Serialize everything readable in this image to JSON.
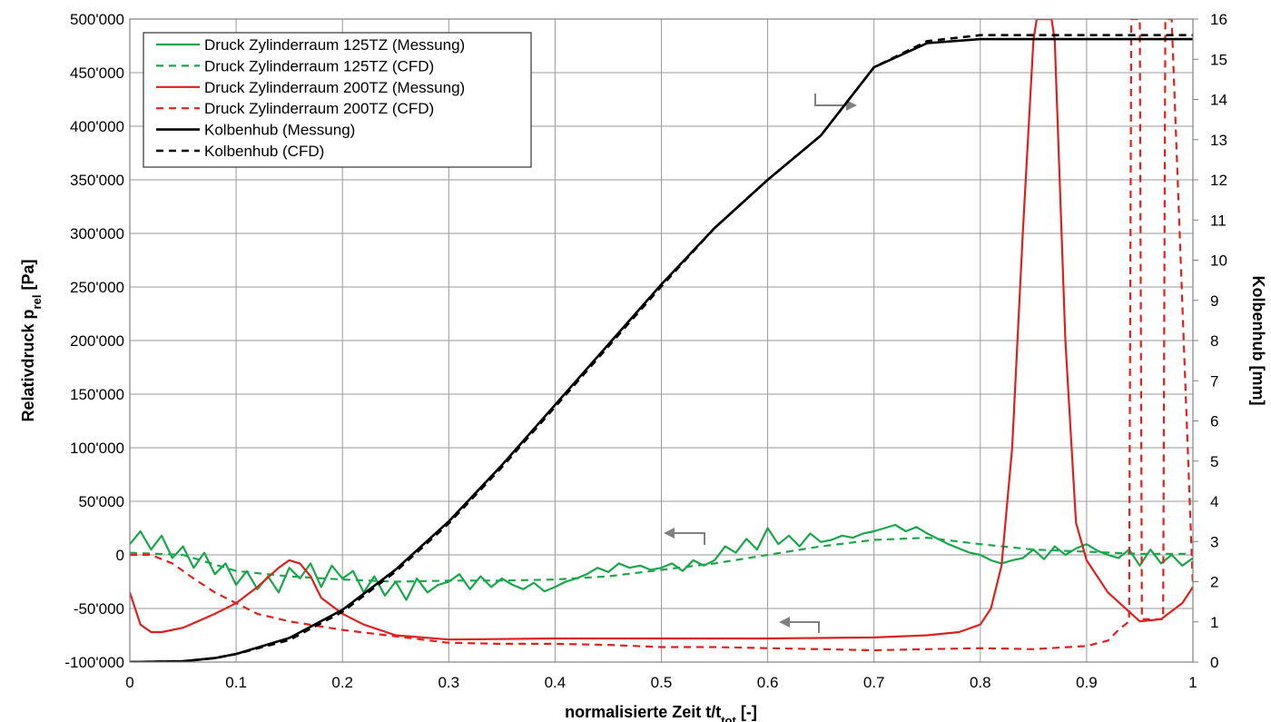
{
  "chart_data": {
    "type": "line",
    "title": "",
    "xlabel": "normalisierte Zeit t/t",
    "xlabel_sub": "tot",
    "xlabel_unit": " [-]",
    "ylabel": "Relativdruck p",
    "ylabel_sub": "rel",
    "ylabel_unit": " [Pa]",
    "y2label": "Kolbenhub [mm]",
    "xlim": [
      0,
      1
    ],
    "ylim": [
      -100000,
      500000
    ],
    "y2lim": [
      0,
      16
    ],
    "grid": true,
    "legend_position": "top-left",
    "x_ticks": [
      "0",
      "0.1",
      "0.2",
      "0.3",
      "0.4",
      "0.5",
      "0.6",
      "0.7",
      "0.8",
      "0.9",
      "1"
    ],
    "y_ticks": [
      "-100'000",
      "-50'000",
      "0",
      "50'000",
      "100'000",
      "150'000",
      "200'000",
      "250'000",
      "300'000",
      "350'000",
      "400'000",
      "450'000",
      "500'000"
    ],
    "y2_ticks": [
      "0",
      "1",
      "2",
      "3",
      "4",
      "5",
      "6",
      "7",
      "8",
      "9",
      "10",
      "11",
      "12",
      "13",
      "14",
      "15",
      "16"
    ],
    "series": [
      {
        "name": "Druck Zylinderraum 125TZ (Messung)",
        "color": "#1aa64a",
        "dash": "solid",
        "axis": "left",
        "x": [
          0,
          0.01,
          0.02,
          0.03,
          0.04,
          0.05,
          0.06,
          0.07,
          0.08,
          0.09,
          0.1,
          0.11,
          0.12,
          0.13,
          0.14,
          0.15,
          0.16,
          0.17,
          0.18,
          0.19,
          0.2,
          0.21,
          0.22,
          0.23,
          0.24,
          0.25,
          0.26,
          0.27,
          0.28,
          0.29,
          0.3,
          0.31,
          0.32,
          0.33,
          0.34,
          0.35,
          0.36,
          0.37,
          0.38,
          0.39,
          0.4,
          0.41,
          0.42,
          0.43,
          0.44,
          0.45,
          0.46,
          0.47,
          0.48,
          0.49,
          0.5,
          0.51,
          0.52,
          0.53,
          0.54,
          0.55,
          0.56,
          0.57,
          0.58,
          0.59,
          0.6,
          0.61,
          0.62,
          0.63,
          0.64,
          0.65,
          0.66,
          0.67,
          0.68,
          0.69,
          0.7,
          0.71,
          0.72,
          0.73,
          0.74,
          0.75,
          0.76,
          0.77,
          0.78,
          0.79,
          0.8,
          0.81,
          0.82,
          0.83,
          0.84,
          0.85,
          0.86,
          0.87,
          0.88,
          0.89,
          0.9,
          0.91,
          0.92,
          0.93,
          0.94,
          0.95,
          0.96,
          0.97,
          0.98,
          0.99,
          1.0
        ],
        "y": [
          10000,
          22000,
          5000,
          18000,
          -3000,
          8000,
          -12000,
          2000,
          -18000,
          -8000,
          -28000,
          -15000,
          -32000,
          -20000,
          -35000,
          -12000,
          -22000,
          -8000,
          -30000,
          -10000,
          -22000,
          -15000,
          -35000,
          -20000,
          -38000,
          -25000,
          -42000,
          -22000,
          -35000,
          -28000,
          -25000,
          -18000,
          -32000,
          -20000,
          -30000,
          -22000,
          -28000,
          -32000,
          -26000,
          -34000,
          -30000,
          -25000,
          -22000,
          -18000,
          -12000,
          -16000,
          -8000,
          -12000,
          -10000,
          -14000,
          -12000,
          -8000,
          -15000,
          -5000,
          -10000,
          -5000,
          8000,
          2000,
          15000,
          5000,
          25000,
          10000,
          18000,
          8000,
          20000,
          12000,
          14000,
          18000,
          16000,
          20000,
          22000,
          25000,
          28000,
          22000,
          26000,
          20000,
          15000,
          10000,
          6000,
          2000,
          0,
          -5000,
          -8000,
          -5000,
          -3000,
          5000,
          -4000,
          8000,
          0,
          6000,
          10000,
          4000,
          0,
          -3000,
          5000,
          -10000,
          5000,
          -8000,
          0,
          -10000,
          -3000
        ]
      },
      {
        "name": "Druck Zylinderraum 125TZ (CFD)",
        "color": "#1aa64a",
        "dash": "dashed",
        "axis": "left",
        "x": [
          0,
          0.05,
          0.1,
          0.15,
          0.2,
          0.25,
          0.3,
          0.35,
          0.4,
          0.45,
          0.5,
          0.55,
          0.6,
          0.65,
          0.7,
          0.75,
          0.8,
          0.85,
          0.9,
          0.95,
          1.0
        ],
        "y": [
          2000,
          0,
          -15000,
          -20000,
          -23000,
          -25000,
          -24000,
          -24000,
          -23000,
          -20000,
          -14000,
          -8000,
          0,
          8000,
          14000,
          16000,
          10000,
          5000,
          3000,
          1000,
          1000
        ]
      },
      {
        "name": "Druck Zylinderraum 200TZ (Messung)",
        "color": "#e0201c",
        "dash": "solid",
        "axis": "left",
        "x": [
          0,
          0.01,
          0.02,
          0.03,
          0.05,
          0.08,
          0.1,
          0.12,
          0.14,
          0.15,
          0.16,
          0.17,
          0.18,
          0.2,
          0.22,
          0.25,
          0.3,
          0.4,
          0.5,
          0.6,
          0.7,
          0.75,
          0.78,
          0.8,
          0.81,
          0.82,
          0.83,
          0.84,
          0.85,
          0.853,
          0.867,
          0.87,
          0.88,
          0.89,
          0.9,
          0.92,
          0.95,
          0.97,
          0.99,
          1.0
        ],
        "y": [
          -35000,
          -65000,
          -72000,
          -72000,
          -68000,
          -55000,
          -45000,
          -30000,
          -12000,
          -5000,
          -8000,
          -20000,
          -40000,
          -55000,
          -65000,
          -75000,
          -79000,
          -78000,
          -78000,
          -78000,
          -77000,
          -75000,
          -72000,
          -65000,
          -50000,
          -10000,
          100000,
          300000,
          480000,
          500000,
          500000,
          480000,
          200000,
          30000,
          -5000,
          -35000,
          -62000,
          -60000,
          -45000,
          -30000
        ]
      },
      {
        "name": "Druck Zylinderraum 200TZ (CFD)",
        "color": "#e0201c",
        "dash": "dashed",
        "axis": "left",
        "x": [
          0,
          0.02,
          0.04,
          0.06,
          0.08,
          0.1,
          0.12,
          0.15,
          0.2,
          0.25,
          0.3,
          0.35,
          0.4,
          0.45,
          0.5,
          0.55,
          0.6,
          0.65,
          0.7,
          0.75,
          0.8,
          0.85,
          0.9,
          0.92,
          0.93,
          0.94,
          0.942,
          0.95,
          0.952,
          0.972,
          0.974,
          0.98,
          1.0
        ],
        "y": [
          0,
          0,
          -8000,
          -22000,
          -35000,
          -45000,
          -55000,
          -62000,
          -70000,
          -76000,
          -82000,
          -83000,
          -83000,
          -84000,
          -86000,
          -86000,
          -87000,
          -88000,
          -89000,
          -88000,
          -87000,
          -88000,
          -85000,
          -80000,
          -70000,
          -62000,
          500000,
          500000,
          -60000,
          -60000,
          500000,
          500000,
          -30000
        ]
      },
      {
        "name": "Kolbenhub (Messung)",
        "color": "#000000",
        "dash": "solid",
        "axis": "right",
        "x": [
          0,
          0.05,
          0.08,
          0.1,
          0.15,
          0.2,
          0.25,
          0.3,
          0.35,
          0.4,
          0.45,
          0.5,
          0.55,
          0.6,
          0.65,
          0.7,
          0.75,
          0.8,
          0.9,
          1.0
        ],
        "y": [
          0,
          0.02,
          0.1,
          0.2,
          0.6,
          1.3,
          2.3,
          3.5,
          4.9,
          6.4,
          7.9,
          9.4,
          10.8,
          12.0,
          13.1,
          14.8,
          15.4,
          15.5,
          15.5,
          15.5
        ]
      },
      {
        "name": "Kolbenhub (CFD)",
        "color": "#000000",
        "dash": "dashed",
        "axis": "right",
        "x": [
          0,
          0.05,
          0.08,
          0.1,
          0.15,
          0.2,
          0.25,
          0.3,
          0.35,
          0.4,
          0.45,
          0.5,
          0.55,
          0.6,
          0.65,
          0.7,
          0.75,
          0.8,
          0.9,
          1.0
        ],
        "y": [
          0,
          0.02,
          0.1,
          0.2,
          0.55,
          1.25,
          2.25,
          3.45,
          4.85,
          6.35,
          7.85,
          9.35,
          10.8,
          12.0,
          13.1,
          14.8,
          15.45,
          15.6,
          15.6,
          15.6
        ]
      }
    ]
  }
}
